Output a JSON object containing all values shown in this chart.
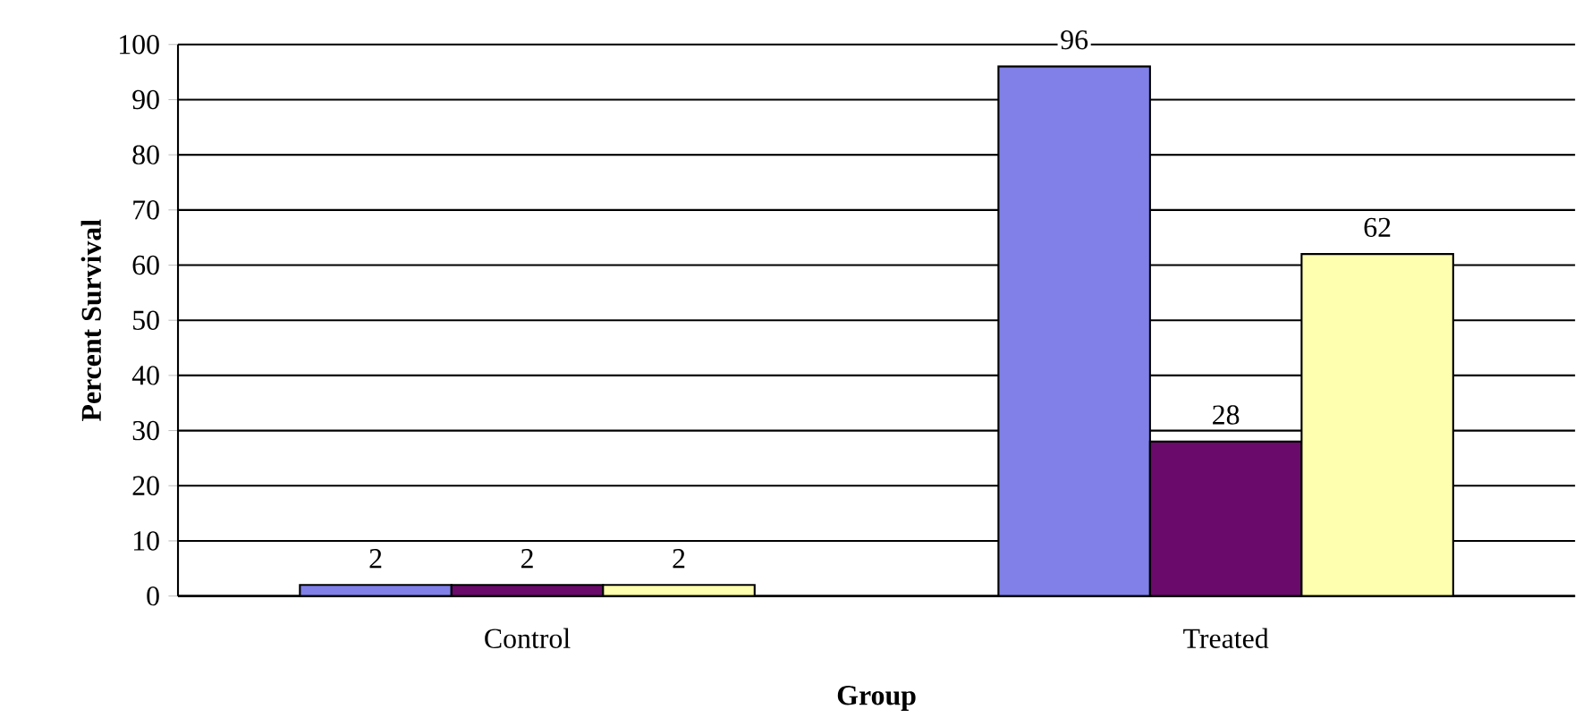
{
  "chart_data": {
    "type": "bar",
    "xlabel": "Group",
    "ylabel": "Percent Survival",
    "categories": [
      "Control",
      "Treated"
    ],
    "series": [
      {
        "color": "#8080e8",
        "values": [
          2,
          96
        ]
      },
      {
        "color": "#6a0a6a",
        "values": [
          2,
          28
        ]
      },
      {
        "color": "#ffffb0",
        "values": [
          2,
          62
        ]
      }
    ],
    "ylim": [
      0,
      100
    ],
    "yticks": [
      0,
      10,
      20,
      30,
      40,
      50,
      60,
      70,
      80,
      90,
      100
    ],
    "grid": "y",
    "data_labels": true
  }
}
